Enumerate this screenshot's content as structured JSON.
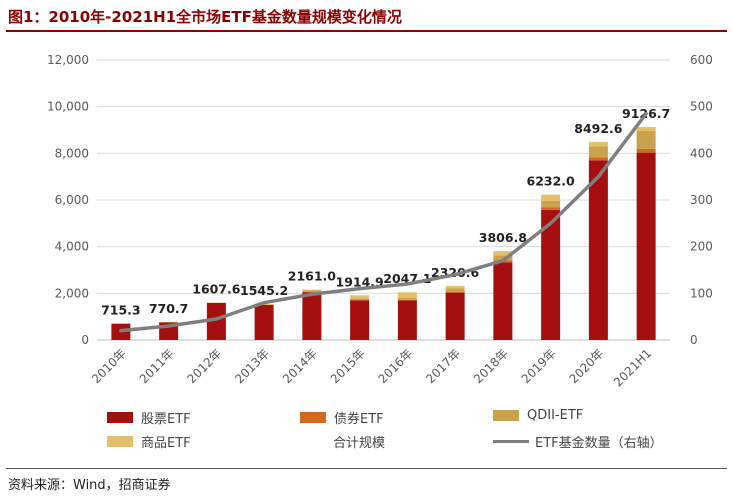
{
  "title": "图1：2010年-2021H1全市场ETF基金数量规模变化情况",
  "source": "资料来源：Wind，招商证券",
  "chart_data": {
    "type": "bar",
    "stacked": true,
    "categories": [
      "2010年",
      "2011年",
      "2012年",
      "2013年",
      "2014年",
      "2015年",
      "2016年",
      "2017年",
      "2018年",
      "2019年",
      "2020年",
      "2021H1"
    ],
    "series": [
      {
        "name": "股票ETF",
        "color": "#a50f0f",
        "values": [
          700,
          750,
          1590,
          1500,
          2050,
          1700,
          1700,
          2030,
          3330,
          5580,
          7700,
          8030
        ]
      },
      {
        "name": "债券ETF",
        "color": "#d2691e",
        "values": [
          0,
          0,
          0,
          5,
          10,
          15,
          20,
          40,
          90,
          100,
          130,
          160
        ]
      },
      {
        "name": "QDII-ETF",
        "color": "#c9a24b",
        "values": [
          0,
          0,
          0,
          0,
          60,
          60,
          90,
          140,
          200,
          280,
          460,
          770
        ]
      },
      {
        "name": "商品ETF",
        "color": "#e3bf6a",
        "values": [
          15,
          20,
          17,
          40,
          40,
          140,
          237,
          110,
          187,
          270,
          200,
          170
        ]
      }
    ],
    "total_series_name": "合计规模",
    "totals": [
      715.3,
      770.7,
      1607.6,
      1545.2,
      2161.0,
      1914.9,
      2047.1,
      2320.6,
      3806.8,
      6232.0,
      8492.6,
      9126.7
    ],
    "total_labels": [
      "715.3",
      "770.7",
      "1607.6",
      "1545.2",
      "2161.0",
      "1914.9",
      "2047.1",
      "2320.6",
      "3806.8",
      "6232.0",
      "8492.6",
      "9126.7"
    ],
    "line_series": {
      "name": "ETF基金数量（右轴）",
      "color": "#7f7f7f",
      "values": [
        20,
        30,
        45,
        80,
        98,
        110,
        120,
        140,
        170,
        250,
        350,
        485
      ]
    },
    "y_left": {
      "min": 0,
      "max": 12000,
      "ticks": [
        0,
        2000,
        4000,
        6000,
        8000,
        10000,
        12000
      ],
      "tick_labels": [
        "0",
        "2,000",
        "4,000",
        "6,000",
        "8,000",
        "10,000",
        "12,000"
      ]
    },
    "y_right": {
      "min": 0,
      "max": 600,
      "ticks": [
        0,
        100,
        200,
        300,
        400,
        500,
        600
      ],
      "tick_labels": [
        "0",
        "100",
        "200",
        "300",
        "400",
        "500",
        "600"
      ]
    },
    "grid": true,
    "legend_position": "bottom"
  }
}
